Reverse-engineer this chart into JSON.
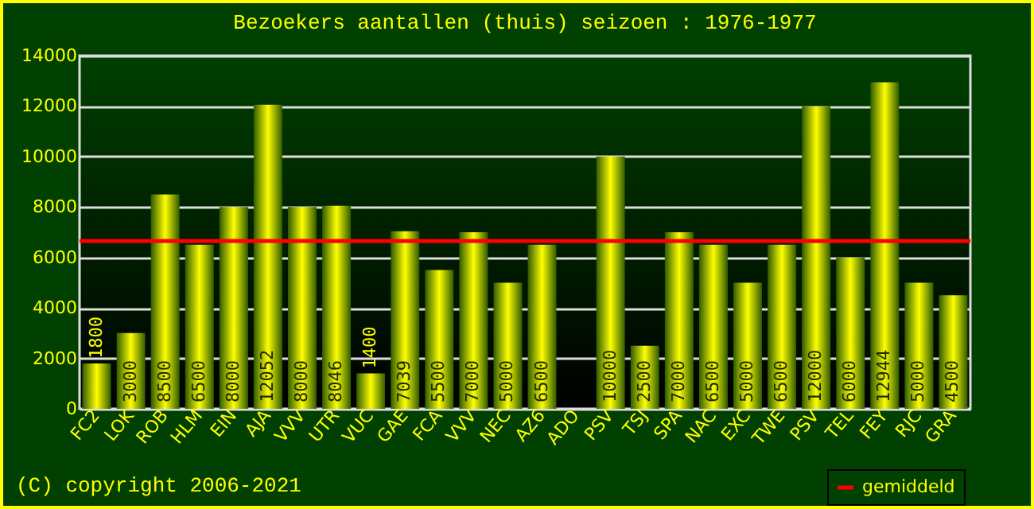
{
  "chart_data": {
    "type": "bar",
    "title": "Bezoekers aantallen (thuis) seizoen : 1976-1977",
    "categories": [
      "FC2",
      "LOK",
      "ROB",
      "HLM",
      "EIN",
      "AJA",
      "VVV",
      "UTR",
      "VUC",
      "GAE",
      "FCA",
      "VVV",
      "NEC",
      "AZ6",
      "ADO",
      "PSV",
      "TSJ",
      "SPA",
      "NAC",
      "EXC",
      "TWE",
      "PSV",
      "TEL",
      "FEY",
      "RJC",
      "GRA"
    ],
    "values": [
      1800,
      3000,
      8500,
      6500,
      8000,
      12052,
      8000,
      8046,
      1400,
      7039,
      5500,
      7000,
      5000,
      6500,
      null,
      10000,
      2500,
      7000,
      6500,
      5000,
      6500,
      12000,
      6000,
      12944,
      5000,
      4500
    ],
    "color": "#ffff00",
    "ylim": [
      0,
      14000
    ],
    "yticks": [
      0,
      2000,
      4000,
      6000,
      8000,
      10000,
      12000,
      14000
    ],
    "grid": "y",
    "data_labels": true,
    "ref_lines": [
      {
        "axis": "y",
        "value": 6651,
        "label": "gemiddeld",
        "color": "#ff0000"
      }
    ],
    "legend": "bottom right",
    "annotations": [
      "(C) copyright 2006-2021"
    ]
  }
}
